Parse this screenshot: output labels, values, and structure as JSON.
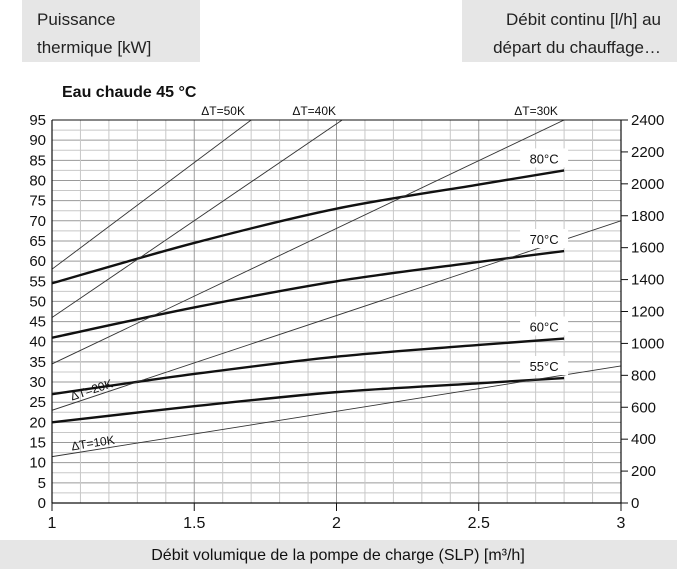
{
  "chart_data": {
    "type": "line",
    "title": "Eau chaude 45 °C",
    "xlabel": "Débit volumique de la pompe de charge (SLP) [m³/h]",
    "ylabel_left": [
      "Puissance",
      "thermique [kW]"
    ],
    "ylabel_right": [
      "Débit continu [l/h] au",
      "départ du chauffage…"
    ],
    "xlim": [
      1,
      3
    ],
    "ylim": [
      0,
      95
    ],
    "y2lim": [
      0,
      2400
    ],
    "x_ticks": [
      1,
      1.5,
      2,
      2.5,
      3
    ],
    "x_tick_labels": [
      "1",
      "1.5",
      "2",
      "2.5",
      "3"
    ],
    "y_ticks": [
      0,
      5,
      10,
      15,
      20,
      25,
      30,
      35,
      40,
      45,
      50,
      55,
      60,
      65,
      70,
      75,
      80,
      85,
      90,
      95
    ],
    "y_tick_labels": [
      "0",
      "5",
      "10",
      "15",
      "20",
      "25",
      "30",
      "35",
      "40",
      "45",
      "50",
      "55",
      "60",
      "65",
      "70",
      "75",
      "80",
      "85",
      "90",
      "95"
    ],
    "y2_ticks": [
      0,
      200,
      400,
      600,
      800,
      1000,
      1200,
      1400,
      1600,
      1800,
      2000,
      2200,
      2400
    ],
    "y2_tick_labels": [
      "0",
      "200",
      "400",
      "600",
      "800",
      "1000",
      "1200",
      "1400",
      "1600",
      "1800",
      "2000",
      "2200",
      "2400"
    ],
    "grid": true,
    "series": [
      {
        "name": "80°C",
        "style": "bold",
        "x": [
          1,
          1.5,
          2,
          2.5,
          2.8
        ],
        "y": [
          54.5,
          64.5,
          73,
          79,
          82.5
        ]
      },
      {
        "name": "70°C",
        "style": "bold",
        "x": [
          1,
          1.5,
          2,
          2.5,
          2.8
        ],
        "y": [
          41,
          48.5,
          55,
          59.8,
          62.5
        ]
      },
      {
        "name": "60°C",
        "style": "bold",
        "x": [
          1,
          1.5,
          2,
          2.5,
          2.8
        ],
        "y": [
          27,
          32,
          36.3,
          39.2,
          40.8
        ]
      },
      {
        "name": "55°C",
        "style": "bold",
        "x": [
          1,
          1.5,
          2,
          2.5,
          2.8
        ],
        "y": [
          20,
          24,
          27.5,
          29.7,
          31
        ]
      },
      {
        "name": "ΔT=50K",
        "style": "thin",
        "x": [
          1,
          1.7
        ],
        "y": [
          58,
          95
        ]
      },
      {
        "name": "ΔT=40K",
        "style": "thin",
        "x": [
          1,
          2.02
        ],
        "y": [
          46,
          95
        ]
      },
      {
        "name": "ΔT=30K",
        "style": "thin",
        "x": [
          1,
          2.8
        ],
        "y": [
          34.5,
          95
        ]
      },
      {
        "name": "ΔT=20K",
        "style": "thin",
        "x": [
          1,
          3
        ],
        "y": [
          23,
          70
        ]
      },
      {
        "name": "ΔT=10K",
        "style": "thin",
        "x": [
          1,
          3
        ],
        "y": [
          11.5,
          34
        ]
      }
    ]
  }
}
